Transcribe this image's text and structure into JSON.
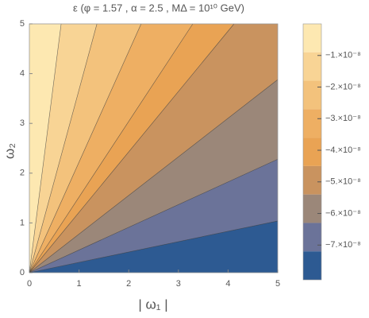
{
  "chart_data": {
    "type": "contour",
    "title": "ε (φ = 1.57 , α = 2.5 , MΔ = 10¹⁰ GeV)",
    "x_label": "| ω₁ |",
    "y_label": "ω₂",
    "xlim": [
      0,
      5
    ],
    "ylim": [
      0,
      5
    ],
    "xticks": [
      0,
      1,
      2,
      3,
      4,
      5
    ],
    "yticks": [
      0,
      1,
      2,
      3,
      4,
      5
    ],
    "zlim": [
      -8.1e-08,
      0
    ],
    "zticks": [
      {
        "value": -1e-08,
        "label": "−1.×10⁻⁸"
      },
      {
        "value": -2e-08,
        "label": "−2.×10⁻⁸"
      },
      {
        "value": -3e-08,
        "label": "−3.×10⁻⁸"
      },
      {
        "value": -4e-08,
        "label": "−4.×10⁻⁸"
      },
      {
        "value": -5e-08,
        "label": "−5.×10⁻⁸"
      },
      {
        "value": -6e-08,
        "label": "−6.×10⁻⁸"
      },
      {
        "value": -7e-08,
        "label": "−7.×10⁻⁸"
      }
    ],
    "levels": [
      -9e-09,
      -1.8e-08,
      -2.7e-08,
      -3.6e-08,
      -4.5e-08,
      -5.4e-08,
      -6.3e-08,
      -7.2e-08
    ],
    "colors": [
      "#fde8b1",
      "#f8d495",
      "#f3c27c",
      "#eeaf63",
      "#e9a354",
      "#c9935f",
      "#9b8779",
      "#6b7399",
      "#2d5a92"
    ],
    "lines": [
      {
        "x": [
          0,
          0.64
        ],
        "y": [
          0,
          5
        ]
      },
      {
        "x": [
          0,
          1.36
        ],
        "y": [
          0,
          5
        ]
      },
      {
        "x": [
          0,
          2.25
        ],
        "y": [
          0,
          5
        ]
      },
      {
        "x": [
          0,
          3.29
        ],
        "y": [
          0,
          5
        ]
      },
      {
        "x": [
          0,
          4.12
        ],
        "y": [
          0,
          5
        ]
      },
      {
        "x": [
          0,
          5
        ],
        "y": [
          0,
          3.88
        ]
      },
      {
        "x": [
          0,
          5
        ],
        "y": [
          0,
          2.28
        ]
      },
      {
        "x": [
          0,
          5
        ],
        "y": [
          0,
          1.04
        ]
      }
    ]
  }
}
